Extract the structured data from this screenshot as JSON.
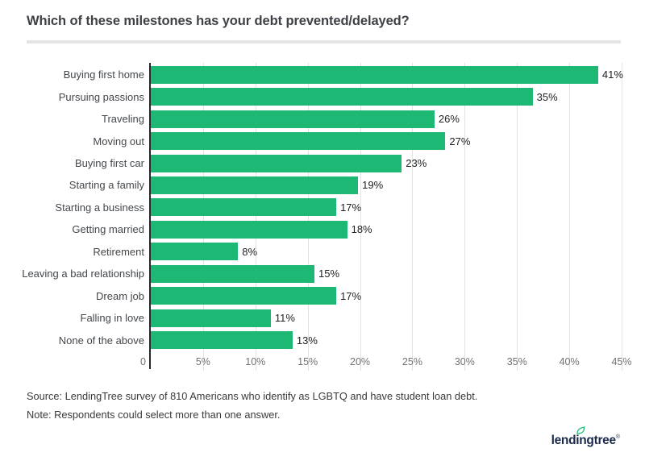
{
  "title": "Which of these milestones has your debt prevented/delayed?",
  "chart_data": {
    "type": "bar",
    "orientation": "horizontal",
    "title": "Which of these milestones has your debt prevented/delayed?",
    "categories": [
      "Buying first home",
      "Pursuing passions",
      "Traveling",
      "Moving out",
      "Buying first car",
      "Starting a family",
      "Starting a business",
      "Getting married",
      "Retirement",
      "Leaving a bad relationship",
      "Dream job",
      "Falling in love",
      "None of the above"
    ],
    "values": [
      41,
      35,
      26,
      27,
      23,
      19,
      17,
      18,
      8,
      15,
      17,
      11,
      13
    ],
    "value_labels": [
      "41%",
      "35%",
      "26%",
      "27%",
      "23%",
      "19%",
      "17%",
      "18%",
      "8%",
      "15%",
      "17%",
      "11%",
      "13%"
    ],
    "xlabel": "",
    "ylabel": "",
    "xlim": [
      0,
      45
    ],
    "x_ticks": [
      "0",
      "5%",
      "10%",
      "15%",
      "20%",
      "25%",
      "30%",
      "35%",
      "40%",
      "45%"
    ],
    "grid": true,
    "legend": false,
    "bar_color": "#1cb874",
    "gridline_color": "#e3e3e3",
    "axis_line_color": "#26282b"
  },
  "notes": {
    "source": "Source: LendingTree survey of 810 Americans who identify as LGBTQ and have student loan debt.",
    "note": "Note: Respondents could select more than one answer."
  },
  "branding": {
    "logo_text": "lendingtree",
    "registered_mark": "®",
    "logo_color": "#1b2a4a",
    "leaf_color": "#27c281"
  }
}
